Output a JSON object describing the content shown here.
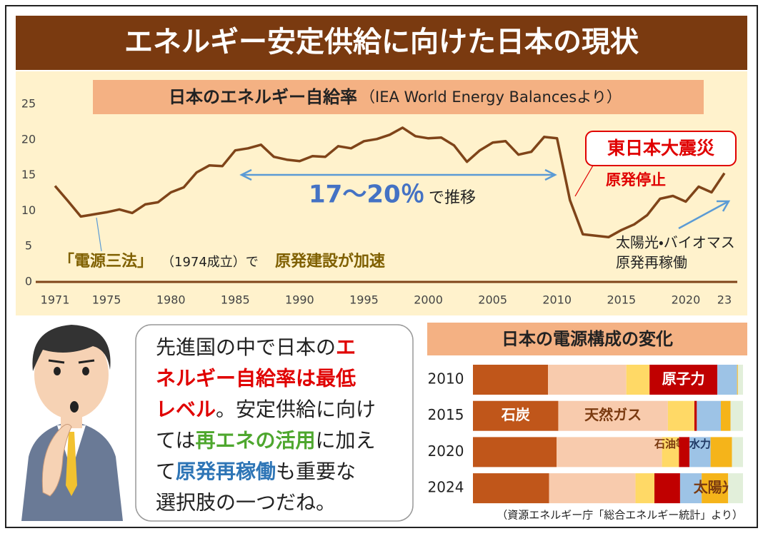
{
  "header": {
    "title": "エネルギー安定供給に向けた日本の現状"
  },
  "chart_data": [
    {
      "type": "line",
      "title": "日本のエネルギー自給率",
      "subtitle": "（IEA World Energy Balancesより）",
      "x": [
        1971,
        1972,
        1973,
        1974,
        1975,
        1976,
        1977,
        1978,
        1979,
        1980,
        1981,
        1982,
        1983,
        1984,
        1985,
        1986,
        1987,
        1988,
        1989,
        1990,
        1991,
        1992,
        1993,
        1994,
        1995,
        1996,
        1997,
        1998,
        1999,
        2000,
        2001,
        2002,
        2003,
        2004,
        2005,
        2006,
        2007,
        2008,
        2009,
        2010,
        2011,
        2012,
        2013,
        2014,
        2015,
        2016,
        2017,
        2018,
        2019,
        2020,
        2021,
        2022,
        2023
      ],
      "values": [
        13.5,
        11.4,
        9.2,
        9.5,
        9.8,
        10.2,
        9.7,
        10.9,
        11.2,
        12.6,
        13.3,
        15.4,
        16.4,
        16.3,
        18.5,
        18.8,
        19.3,
        17.6,
        17.2,
        17.0,
        17.7,
        17.6,
        19.1,
        18.8,
        19.8,
        20.1,
        20.7,
        21.7,
        20.5,
        20.2,
        20.3,
        19.2,
        16.9,
        18.5,
        19.6,
        19.8,
        17.9,
        18.3,
        20.4,
        20.2,
        11.5,
        6.7,
        6.5,
        6.3,
        7.3,
        8.1,
        9.4,
        11.7,
        12.1,
        11.3,
        13.4,
        12.6,
        15.3
      ],
      "color": "#7f4419",
      "xlim": [
        1969.5,
        2024
      ],
      "xticks": [
        1971,
        1975,
        1980,
        1985,
        1990,
        1995,
        2000,
        2005,
        2010,
        2015,
        2020,
        {
          "value": 2023,
          "label": "23"
        }
      ],
      "ylim": [
        0,
        25
      ],
      "yticks": [
        0,
        5,
        10,
        15,
        20,
        25
      ],
      "grid": false,
      "annotations": [
        "17～20％",
        "で推移",
        "東日本大震災",
        "原発停止",
        "太陽光・バイオマス",
        "原発再稼働",
        "「電源三法」",
        "（1974成立）で",
        "原発建設が加速"
      ]
    },
    {
      "type": "stacked-bar",
      "title": "日本の電源構成の変化",
      "note": "（資源エネルギー庁「総合エネルギー統計」より）",
      "categories": [
        "2010",
        "2015",
        "2020",
        "2024"
      ],
      "series": [
        {
          "name": "石炭",
          "color": "#c0561a",
          "label_color": "#ffffff",
          "label_category": 1,
          "values": [
            27.8,
            31.6,
            31.0,
            28.2
          ]
        },
        {
          "name": "天然ガス",
          "color": "#f8cbad",
          "label_color": "#7a3a10",
          "label_category": 1,
          "values": [
            29.0,
            40.6,
            39.0,
            32.0
          ]
        },
        {
          "name": "石油等",
          "color": "#ffd966",
          "label_color": "#7a3a10",
          "label_category": 2,
          "values": [
            8.6,
            9.8,
            6.3,
            7.0
          ]
        },
        {
          "name": "原子力",
          "color": "#c00000",
          "label_color": "#ffffff",
          "label_category": 0,
          "values": [
            25.1,
            0.9,
            3.9,
            9.5
          ]
        },
        {
          "name": "水力",
          "color": "#9dc3e6",
          "label_color": "#1f3864",
          "label_category": 2,
          "values": [
            7.3,
            8.9,
            7.8,
            8.0
          ]
        },
        {
          "name": "太陽光",
          "color": "#f5b41a",
          "label_color": "#7a3a10",
          "label_category": 3,
          "values": [
            0.3,
            3.6,
            7.9,
            9.8
          ]
        },
        {
          "color": "#e2efda",
          "values": [
            1.9,
            4.6,
            4.1,
            5.5
          ]
        }
      ]
    }
  ],
  "speech": {
    "lines": [
      [
        {
          "text": "先進国の中で日本の"
        },
        {
          "text": "エ",
          "color": "#e00000"
        }
      ],
      [
        {
          "text": "ネルギー自給率は最低",
          "color": "#e00000"
        }
      ],
      [
        {
          "text": "レベル",
          "color": "#e00000"
        },
        {
          "text": "。安定供給に向け"
        }
      ],
      [
        {
          "text": "ては"
        },
        {
          "text": "再エネの活用",
          "color": "#4ea72e"
        },
        {
          "text": "に加え"
        }
      ],
      [
        {
          "text": "て"
        },
        {
          "text": "原発再稼働",
          "color": "#2e75b6"
        },
        {
          "text": "も重要な"
        }
      ],
      [
        {
          "text": "選択肢の一つだね。"
        }
      ]
    ]
  }
}
